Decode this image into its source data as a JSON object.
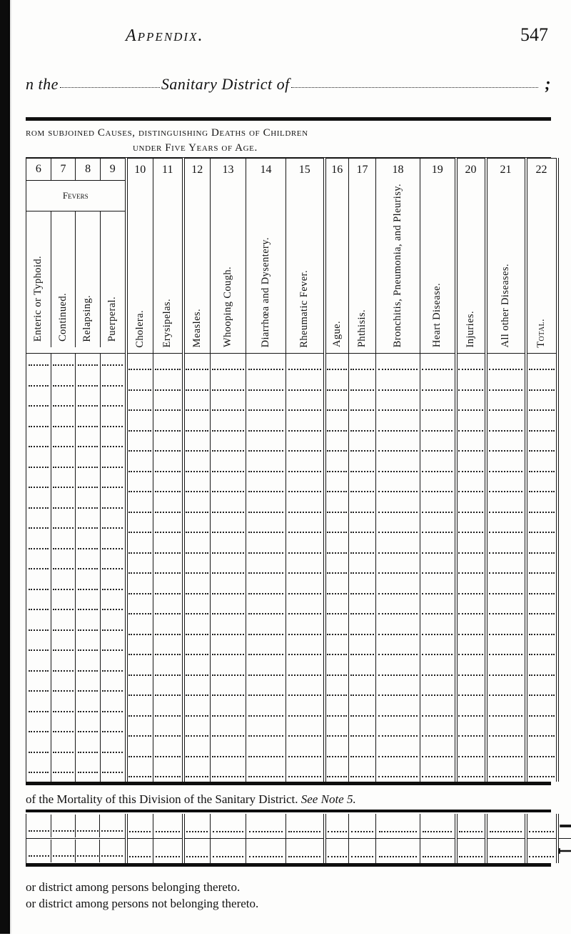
{
  "header": {
    "running_title": "Appendix.",
    "page_number": "547"
  },
  "fill_in": {
    "prefix": "n the",
    "middle": "Sanitary District of",
    "trailing_punct": ";"
  },
  "subtitle": {
    "line1": "rom subjoined Causes, distinguishing Deaths of Children",
    "line2": "under Five Years of Age."
  },
  "colors": {
    "ink": "#121212",
    "paper": "#fdfdfc",
    "rule": "#101010",
    "dot": "#202020"
  },
  "columns": {
    "numbers": [
      "6",
      "7",
      "8",
      "9",
      "10",
      "11",
      "12",
      "13",
      "14",
      "15",
      "16",
      "17",
      "18",
      "19",
      "20",
      "21",
      "22"
    ],
    "fevers_label": "Fevers",
    "labels_vertical": [
      "Enteric or Typhoid.",
      "Continued.",
      "Relapsing.",
      "Puerperal.",
      "Cholera.",
      "Erysipelas.",
      "Measles.",
      "Whooping Cough.",
      "Diarrhœa and Dysentery.",
      "Rheumatic Fever.",
      "Ague.",
      "Phthisis.",
      "Bronchitis, Pneumonia, and Pleurisy.",
      "Heart Disease.",
      "Injuries.",
      "All other Diseases.",
      "Total."
    ],
    "double_rule_before_idx": [
      4,
      6,
      10,
      14,
      15,
      16
    ],
    "double_rule_after_last": true,
    "fevers_span_cols": 4
  },
  "body_rows": 21,
  "mortality_note": {
    "text_prefix": "of the Mortality of this Division of the Sanitary District.  ",
    "see_note": "See Note 5."
  },
  "small_table_rows": 2,
  "footnotes": {
    "line1": "or district among persons belonging thereto.",
    "line2": "or district among persons not belonging thereto."
  }
}
